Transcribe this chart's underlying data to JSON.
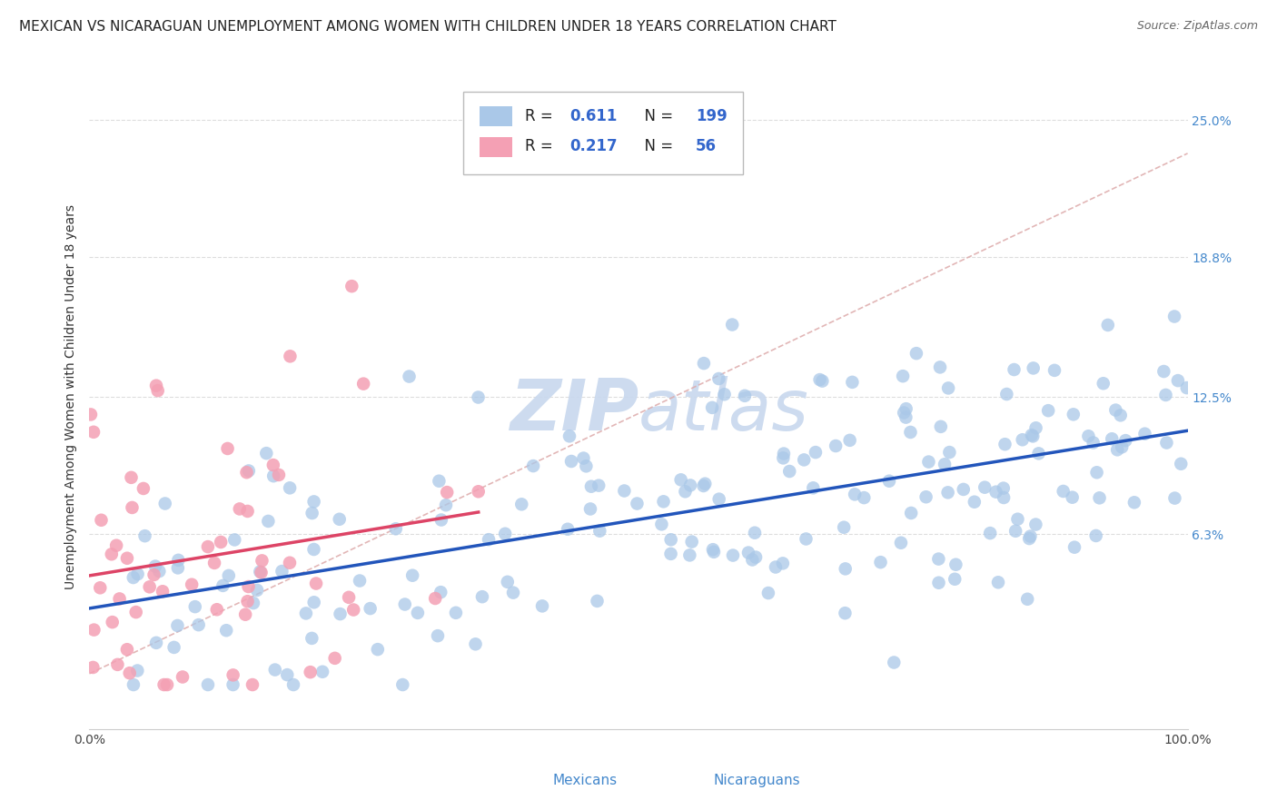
{
  "title": "MEXICAN VS NICARAGUAN UNEMPLOYMENT AMONG WOMEN WITH CHILDREN UNDER 18 YEARS CORRELATION CHART",
  "source": "Source: ZipAtlas.com",
  "ylabel": "Unemployment Among Women with Children Under 18 years",
  "ytick_labels": [
    "6.3%",
    "12.5%",
    "18.8%",
    "25.0%"
  ],
  "ytick_values": [
    0.063,
    0.125,
    0.188,
    0.25
  ],
  "xlim": [
    0.0,
    1.0
  ],
  "ylim": [
    -0.025,
    0.275
  ],
  "mexican_R": 0.611,
  "mexican_N": 199,
  "nicaraguan_R": 0.217,
  "nicaraguan_N": 56,
  "mexican_color": "#aac8e8",
  "nicaraguan_color": "#f4a0b4",
  "mexican_line_color": "#2255bb",
  "nicaraguan_line_color": "#dd4466",
  "trend_line_color": "#ddaaaa",
  "grid_color": "#dddddd",
  "background_color": "#ffffff",
  "watermark_color": "#c8d8ee",
  "title_fontsize": 11,
  "source_fontsize": 9,
  "legend_fontsize": 12,
  "axis_tick_fontsize": 10,
  "ytick_color": "#4488cc",
  "legend_text_color": "#222222",
  "legend_value_color": "#3366cc",
  "bottom_legend_color": "#4488cc"
}
